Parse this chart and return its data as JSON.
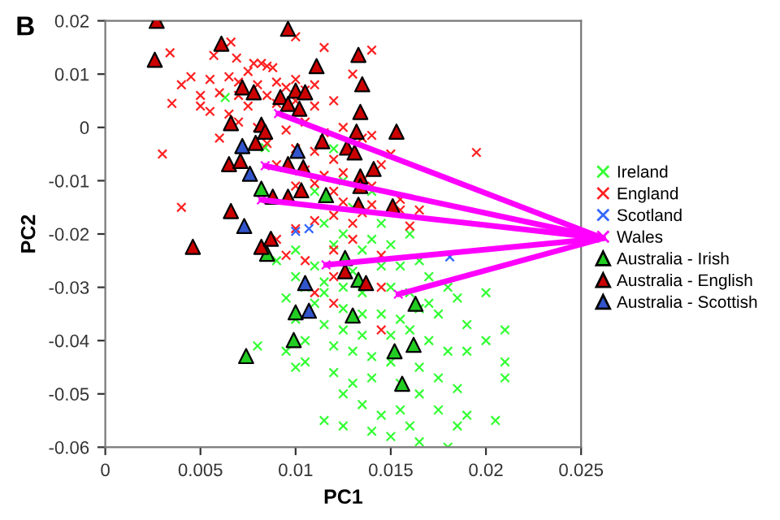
{
  "chart_data": {
    "type": "scatter",
    "title": "B",
    "xlabel": "PC1",
    "ylabel": "PC2",
    "xlim": [
      0,
      0.025
    ],
    "xticks": [
      0,
      0.005,
      0.01,
      0.015,
      0.02,
      0.025
    ],
    "ylim": [
      -0.06,
      0.02
    ],
    "yticks": [
      -0.06,
      -0.05,
      -0.04,
      -0.03,
      -0.02,
      -0.01,
      0,
      0.01,
      0.02
    ],
    "grid": false,
    "legend": "right",
    "series": [
      {
        "name": "Ireland",
        "color": "#33ff33",
        "marker": "cross",
        "x": [
          0.0063,
          0.0084,
          0.012,
          0.014,
          0.0115,
          0.0125,
          0.014,
          0.015,
          0.01,
          0.011,
          0.013,
          0.0145,
          0.0155,
          0.0165,
          0.017,
          0.01,
          0.0105,
          0.0115,
          0.0125,
          0.0135,
          0.015,
          0.016,
          0.017,
          0.018,
          0.0185,
          0.02,
          0.0095,
          0.011,
          0.0125,
          0.0135,
          0.0145,
          0.0155,
          0.0165,
          0.0175,
          0.019,
          0.021,
          0.02,
          0.01,
          0.0115,
          0.0125,
          0.0135,
          0.015,
          0.016,
          0.017,
          0.018,
          0.019,
          0.021,
          0.021,
          0.008,
          0.0095,
          0.0105,
          0.012,
          0.013,
          0.014,
          0.015,
          0.0165,
          0.0175,
          0.0185,
          0.01,
          0.012,
          0.013,
          0.014,
          0.0155,
          0.0165,
          0.0175,
          0.019,
          0.0125,
          0.0135,
          0.0145,
          0.0155,
          0.016,
          0.0185,
          0.0205,
          0.014,
          0.015,
          0.018,
          0.0165,
          0.0115,
          0.0125,
          0.0105,
          0.0115,
          0.009,
          0.012,
          0.0135,
          0.016,
          0.0145,
          0.013,
          0.011,
          0.0125
        ],
        "values": [
          0.0056,
          -0.0038,
          -0.004,
          -0.012,
          -0.018,
          -0.02,
          -0.021,
          -0.022,
          -0.023,
          -0.026,
          -0.027,
          -0.026,
          -0.026,
          -0.025,
          -0.028,
          -0.028,
          -0.03,
          -0.029,
          -0.03,
          -0.031,
          -0.03,
          -0.031,
          -0.033,
          -0.03,
          -0.032,
          -0.031,
          -0.032,
          -0.033,
          -0.034,
          -0.035,
          -0.035,
          -0.036,
          -0.034,
          -0.035,
          -0.037,
          -0.038,
          -0.04,
          -0.036,
          -0.037,
          -0.038,
          -0.039,
          -0.039,
          -0.038,
          -0.04,
          -0.042,
          -0.042,
          -0.044,
          -0.047,
          -0.041,
          -0.042,
          -0.044,
          -0.041,
          -0.042,
          -0.043,
          -0.044,
          -0.045,
          -0.047,
          -0.049,
          -0.045,
          -0.046,
          -0.048,
          -0.047,
          -0.048,
          -0.05,
          -0.053,
          -0.054,
          -0.05,
          -0.052,
          -0.054,
          -0.053,
          -0.056,
          -0.056,
          -0.055,
          -0.057,
          -0.058,
          -0.06,
          -0.059,
          -0.055,
          -0.056,
          -0.04,
          -0.031,
          -0.025,
          -0.022,
          -0.023,
          -0.02,
          -0.018,
          -0.015,
          -0.012,
          -0.01
        ]
      },
      {
        "name": "England",
        "color": "#ff2020",
        "marker": "cross",
        "x": [
          0.0066,
          0.0034,
          0.0057,
          0.0069,
          0.0078,
          0.0082,
          0.0085,
          0.0088,
          0.0075,
          0.0065,
          0.0055,
          0.0045,
          0.004,
          0.007,
          0.008,
          0.009,
          0.01,
          0.0095,
          0.0105,
          0.011,
          0.005,
          0.006,
          0.007,
          0.0085,
          0.0035,
          0.0055,
          0.0065,
          0.005,
          0.0075,
          0.009,
          0.01,
          0.011,
          0.012,
          0.013,
          0.014,
          0.0115,
          0.01,
          0.007,
          0.008,
          0.0095,
          0.0105,
          0.0115,
          0.0125,
          0.0135,
          0.015,
          0.0145,
          0.0195,
          0.014,
          0.006,
          0.0085,
          0.01,
          0.011,
          0.012,
          0.009,
          0.0105,
          0.0115,
          0.0125,
          0.0135,
          0.014,
          0.011,
          0.01,
          0.012,
          0.004,
          0.0125,
          0.014,
          0.0155,
          0.0165,
          0.0155,
          0.013,
          0.012,
          0.0135,
          0.016,
          0.01,
          0.011,
          0.009,
          0.013,
          0.012,
          0.0095,
          0.0105,
          0.012,
          0.011,
          0.0145,
          0.012,
          0.0145,
          0.0145,
          0.003
        ],
        "values": [
          0.016,
          0.014,
          0.0135,
          0.013,
          0.012,
          0.012,
          0.0115,
          0.0112,
          0.0105,
          0.0095,
          0.009,
          0.0095,
          0.008,
          0.0085,
          0.008,
          0.0085,
          0.009,
          0.0075,
          0.007,
          0.008,
          0.006,
          0.0065,
          0.006,
          0.006,
          0.0045,
          0.003,
          0.0025,
          0.004,
          0.004,
          0.0045,
          0.005,
          0.004,
          0.005,
          0.01,
          0.0145,
          0.015,
          0.017,
          0.001,
          0.0,
          -0.0005,
          0.001,
          -0.001,
          0.0,
          -0.002,
          -0.005,
          -0.007,
          -0.0047,
          -0.0015,
          -0.002,
          -0.003,
          -0.004,
          -0.0045,
          -0.006,
          -0.007,
          -0.008,
          -0.009,
          -0.0085,
          -0.01,
          -0.011,
          -0.0105,
          -0.011,
          -0.012,
          -0.015,
          -0.014,
          -0.0145,
          -0.0155,
          -0.0155,
          -0.0135,
          -0.018,
          -0.0165,
          -0.016,
          -0.0185,
          -0.019,
          -0.0175,
          -0.021,
          -0.021,
          -0.023,
          -0.024,
          -0.025,
          -0.028,
          -0.031,
          -0.03,
          -0.033,
          -0.038,
          -0.024,
          -0.005
        ]
      },
      {
        "name": "Scotland",
        "color": "#3366ff",
        "marker": "cross",
        "x": [
          0.0107,
          0.0181,
          0.01
        ],
        "values": [
          -0.019,
          -0.0243,
          -0.0195
        ]
      },
      {
        "name": "Wales",
        "color": "#ff00ff",
        "marker": "cross",
        "x": [
          0.0091,
          0.0084,
          0.0082,
          0.0116,
          0.0154
        ],
        "values": [
          0.0026,
          -0.0072,
          -0.0136,
          -0.0258,
          -0.0313
        ]
      },
      {
        "name": "Australia - Irish",
        "color": "#22cc22",
        "marker": "triangle",
        "x": [
          0.0074,
          0.0099,
          0.01,
          0.0085,
          0.0126,
          0.013,
          0.0133,
          0.0163,
          0.0152,
          0.0162,
          0.0156,
          0.0116,
          0.0082
        ],
        "values": [
          -0.0429,
          -0.0399,
          -0.0347,
          -0.0237,
          -0.0245,
          -0.0353,
          -0.0286,
          -0.0331,
          -0.042,
          -0.0408,
          -0.0481,
          -0.0127,
          -0.0115
        ]
      },
      {
        "name": "Australia - English",
        "color": "#cc0000",
        "marker": "triangle",
        "x": [
          0.0027,
          0.0096,
          0.0061,
          0.0026,
          0.0111,
          0.0072,
          0.0078,
          0.0092,
          0.01,
          0.0105,
          0.0096,
          0.0102,
          0.0066,
          0.0082,
          0.0084,
          0.0114,
          0.0065,
          0.0071,
          0.0079,
          0.0096,
          0.0104,
          0.0088,
          0.0096,
          0.0103,
          0.0066,
          0.0046,
          0.0082,
          0.0087,
          0.0133,
          0.0135,
          0.0134,
          0.0153,
          0.0132,
          0.0127,
          0.0131,
          0.0141,
          0.0134,
          0.0134,
          0.0133,
          0.0151,
          0.0137,
          0.0126
        ],
        "values": [
          0.02,
          0.0185,
          0.0157,
          0.0127,
          0.0115,
          0.0075,
          0.0066,
          0.0057,
          0.0069,
          0.0066,
          0.0044,
          0.0035,
          0.0008,
          0.0005,
          -0.0008,
          -0.0026,
          -0.0069,
          -0.0063,
          -0.0029,
          -0.0069,
          -0.0075,
          -0.013,
          -0.013,
          -0.0118,
          -0.0157,
          -0.0224,
          -0.0224,
          -0.0209,
          0.0136,
          0.0081,
          0.0029,
          -0.0008,
          -0.0008,
          -0.0038,
          -0.0047,
          -0.0078,
          -0.0092,
          -0.011,
          -0.0145,
          -0.0148,
          -0.0292,
          -0.027
        ]
      },
      {
        "name": "Australia - Scottish",
        "color": "#3355cc",
        "marker": "triangle",
        "x": [
          0.0072,
          0.0076,
          0.0101,
          0.0073,
          0.0105,
          0.0107
        ],
        "values": [
          -0.0035,
          -0.0087,
          -0.0044,
          -0.0185,
          -0.0292,
          -0.0344
        ]
      }
    ]
  }
}
